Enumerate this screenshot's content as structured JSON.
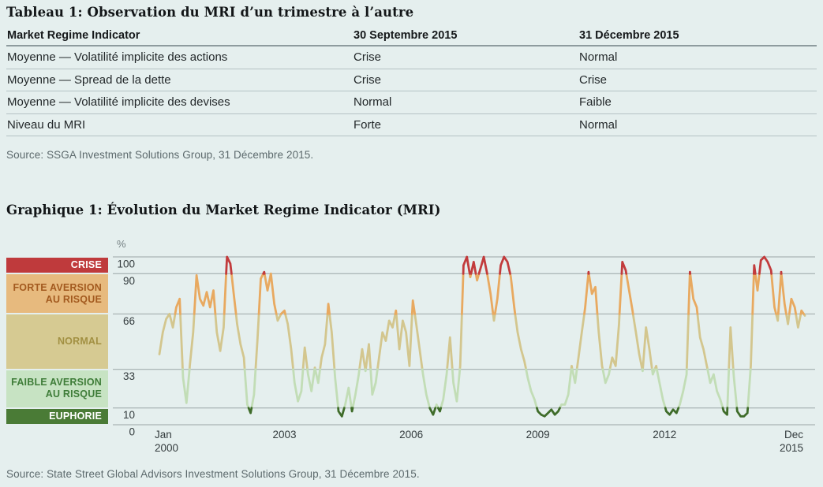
{
  "table_section": {
    "title": "Tableau 1: Observation du MRI d’un trimestre à l’autre",
    "columns": [
      "Market Regime Indicator",
      "30 Septembre 2015",
      "31 Décembre 2015"
    ],
    "rows": [
      {
        "label": "Moyenne — Volatilité implicite des actions",
        "sep_2015": "Crise",
        "dec_2015": "Normal"
      },
      {
        "label": "Moyenne — Spread de la dette",
        "sep_2015": "Crise",
        "dec_2015": "Crise"
      },
      {
        "label": "Moyenne — Volatilité implicite des devises",
        "sep_2015": "Normal",
        "dec_2015": "Faible"
      },
      {
        "label": "Niveau du MRI",
        "sep_2015": "Forte",
        "dec_2015": "Normal"
      }
    ],
    "source": "Source: SSGA Investment Solutions Group, 31 Décembre 2015."
  },
  "chart_section": {
    "title": "Graphique 1: Évolution du Market Regime Indicator (MRI)",
    "source": "Source: State Street Global Advisors Investment Solutions Group, 31 Décembre 2015.",
    "legend": [
      {
        "label_lines": [
          "CRISE"
        ],
        "range": [
          90,
          100
        ],
        "band_color": "#bf3a3c",
        "text_color": "#ffffff"
      },
      {
        "label_lines": [
          "FORTE AVERSION",
          "AU RISQUE"
        ],
        "range": [
          66,
          90
        ],
        "band_color": "#e7ba7e",
        "text_color": "#a35a1f"
      },
      {
        "label_lines": [
          "NORMAL"
        ],
        "range": [
          33,
          66
        ],
        "band_color": "#d6ca92",
        "text_color": "#a29042"
      },
      {
        "label_lines": [
          "FAIBLE AVERSION",
          "AU RISQUE"
        ],
        "range": [
          10,
          33
        ],
        "band_color": "#c7e3c3",
        "text_color": "#3f7d39"
      },
      {
        "label_lines": [
          "EUPHORIE"
        ],
        "range": [
          0,
          10
        ],
        "band_color": "#4a7b36",
        "text_color": "#ffffff"
      }
    ]
  },
  "chart_data": {
    "type": "line",
    "title": "Évolution du Market Regime Indicator (MRI)",
    "ylabel": "%",
    "ylim": [
      0,
      100
    ],
    "yticks": [
      100,
      90,
      66,
      33,
      10,
      0
    ],
    "grid": true,
    "thresholds": [
      10,
      33,
      66,
      90
    ],
    "band_names": [
      "euphorie",
      "faible-aversion",
      "normal",
      "forte-aversion",
      "crise"
    ],
    "band_line_colors": [
      "#3f6c2a",
      "#c2ddb6",
      "#d3c68e",
      "#e8a960",
      "#c23b3c"
    ],
    "frequency": "monthly",
    "x_start": "Jan 2000",
    "x_end": "Dec 2015",
    "xticks": [
      {
        "label": "Jan\n2000",
        "month": 0,
        "align": "start"
      },
      {
        "label": "2003",
        "month": 36,
        "align": "middle"
      },
      {
        "label": "2006",
        "month": 72,
        "align": "middle"
      },
      {
        "label": "2009",
        "month": 108,
        "align": "middle"
      },
      {
        "label": "2012",
        "month": 144,
        "align": "middle"
      },
      {
        "label": "Dec\n2015",
        "month": 191,
        "align": "end"
      }
    ],
    "series_name": "Market Regime Indicator (%)",
    "values": [
      42,
      55,
      63,
      66,
      58,
      70,
      75,
      28,
      13,
      35,
      55,
      89,
      75,
      71,
      79,
      70,
      80,
      55,
      44,
      58,
      100,
      96,
      78,
      60,
      48,
      40,
      12,
      7,
      18,
      50,
      87,
      91,
      80,
      90,
      72,
      62,
      66,
      68,
      60,
      45,
      25,
      14,
      20,
      46,
      30,
      20,
      34,
      25,
      40,
      48,
      72,
      55,
      28,
      8,
      5,
      12,
      22,
      8,
      18,
      30,
      45,
      32,
      48,
      18,
      25,
      40,
      55,
      50,
      62,
      58,
      68,
      45,
      62,
      55,
      35,
      74,
      60,
      45,
      30,
      18,
      10,
      6,
      12,
      8,
      15,
      30,
      52,
      25,
      14,
      35,
      95,
      100,
      88,
      97,
      86,
      93,
      100,
      90,
      78,
      62,
      75,
      95,
      100,
      97,
      88,
      70,
      55,
      45,
      38,
      28,
      20,
      15,
      8,
      6,
      5,
      7,
      9,
      6,
      8,
      12,
      12,
      18,
      35,
      25,
      40,
      55,
      70,
      91,
      78,
      82,
      55,
      35,
      25,
      30,
      40,
      35,
      60,
      97,
      92,
      80,
      68,
      55,
      42,
      32,
      58,
      45,
      30,
      35,
      25,
      15,
      8,
      6,
      9,
      7,
      12,
      20,
      30,
      91,
      75,
      70,
      52,
      45,
      35,
      25,
      30,
      20,
      15,
      8,
      6,
      58,
      28,
      8,
      5,
      5,
      7,
      35,
      95,
      80,
      98,
      100,
      97,
      92,
      70,
      62,
      91,
      72,
      60,
      75,
      70,
      58,
      68,
      65
    ]
  }
}
